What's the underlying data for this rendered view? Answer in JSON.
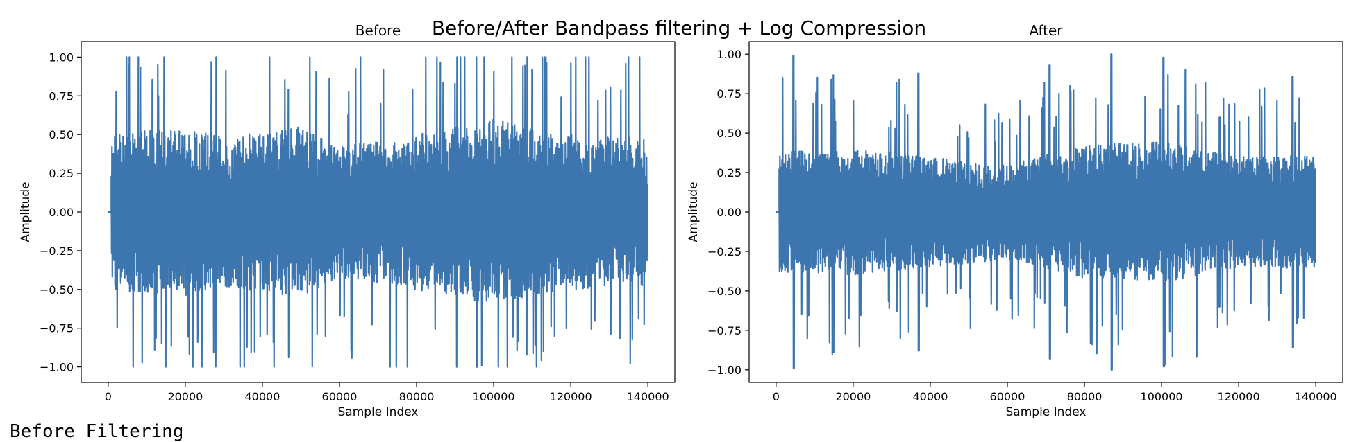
{
  "figure": {
    "suptitle": "Before/After Bandpass filtering + Log Compression"
  },
  "chart_data": [
    {
      "type": "line",
      "title": "Before",
      "xlabel": "Sample Index",
      "ylabel": "Amplitude",
      "xlim": [
        -7000,
        147000
      ],
      "ylim": [
        -1.1,
        1.1
      ],
      "xticks": [
        0,
        20000,
        40000,
        60000,
        80000,
        100000,
        120000,
        140000
      ],
      "xtick_labels": [
        "0",
        "20000",
        "40000",
        "60000",
        "80000",
        "100000",
        "120000",
        "140000"
      ],
      "yticks": [
        1.0,
        0.75,
        0.5,
        0.25,
        0.0,
        -0.25,
        -0.5,
        -0.75,
        -1.0
      ],
      "ytick_labels": [
        "1.00",
        "0.75",
        "0.50",
        "0.25",
        "0.00",
        "−0.25",
        "−0.50",
        "−0.75",
        "−1.00"
      ],
      "grid": false,
      "color": "#3d76af",
      "signal": {
        "n_samples": 140000,
        "signal_onset": 800,
        "envelope": [
          [
            0,
            0.5
          ],
          [
            20000,
            0.55
          ],
          [
            30000,
            0.48
          ],
          [
            50000,
            0.55
          ],
          [
            60000,
            0.42
          ],
          [
            80000,
            0.5
          ],
          [
            100000,
            0.6
          ],
          [
            120000,
            0.5
          ],
          [
            140000,
            0.48
          ]
        ],
        "clipped_at": 1.0
      }
    },
    {
      "type": "line",
      "title": "After",
      "xlabel": "Sample Index",
      "ylabel": "Amplitude",
      "xlim": [
        -7000,
        147000
      ],
      "ylim": [
        -1.08,
        1.08
      ],
      "xticks": [
        0,
        20000,
        40000,
        60000,
        80000,
        100000,
        120000,
        140000
      ],
      "xtick_labels": [
        "0",
        "20000",
        "40000",
        "60000",
        "80000",
        "100000",
        "120000",
        "140000"
      ],
      "yticks": [
        1.0,
        0.75,
        0.5,
        0.25,
        0.0,
        -0.25,
        -0.5,
        -0.75,
        -1.0
      ],
      "ytick_labels": [
        "1.00",
        "0.75",
        "0.50",
        "0.25",
        "0.00",
        "−0.25",
        "−0.50",
        "−0.75",
        "−1.00"
      ],
      "grid": false,
      "color": "#3d76af",
      "signal": {
        "n_samples": 140000,
        "signal_onset": 800,
        "envelope": [
          [
            0,
            0.38
          ],
          [
            20000,
            0.4
          ],
          [
            40000,
            0.35
          ],
          [
            60000,
            0.3
          ],
          [
            80000,
            0.42
          ],
          [
            100000,
            0.45
          ],
          [
            120000,
            0.35
          ],
          [
            140000,
            0.36
          ]
        ],
        "peaks": [
          [
            4500,
            0.99
          ],
          [
            37000,
            0.88
          ],
          [
            71000,
            0.93
          ],
          [
            87000,
            1.0
          ],
          [
            100500,
            0.98
          ],
          [
            115000,
            0.6
          ],
          [
            134000,
            0.86
          ]
        ]
      }
    }
  ],
  "output": {
    "text": "Before Filtering"
  }
}
